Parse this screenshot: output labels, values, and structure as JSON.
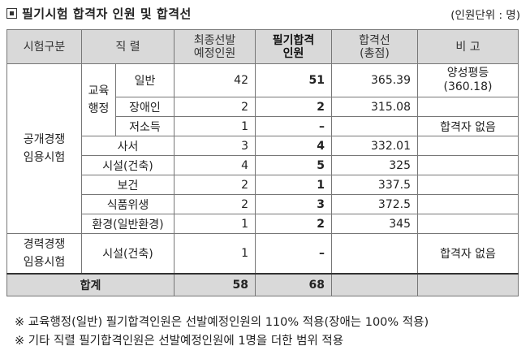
{
  "title": "필기시험 합격자 인원 및 합격선",
  "unit": "(인원단위 : 명)",
  "headers": {
    "category": "시험구분",
    "position": "직  렬",
    "planned": [
      "최종선발",
      "예정인원"
    ],
    "passed": [
      "필기합격",
      "인원"
    ],
    "cutoff": [
      "합격선",
      "(총점)"
    ],
    "note": "비  고"
  },
  "groups": {
    "public": [
      "공개경쟁",
      "임용시험"
    ],
    "career": [
      "경력경쟁",
      "임용시험"
    ],
    "edu": [
      "교육",
      "행정"
    ]
  },
  "rows": [
    {
      "name": "일반",
      "planned": "42",
      "passed": "51",
      "cutoff": "365.39",
      "note": [
        "양성평등",
        "(360.18)"
      ]
    },
    {
      "name": "장애인",
      "planned": "2",
      "passed": "2",
      "cutoff": "315.08",
      "note": []
    },
    {
      "name": "저소득",
      "planned": "1",
      "passed": "–",
      "cutoff": "",
      "note": [
        "합격자 없음"
      ]
    },
    {
      "name": "사서",
      "planned": "3",
      "passed": "4",
      "cutoff": "332.01",
      "note": []
    },
    {
      "name": "시설(건축)",
      "planned": "4",
      "passed": "5",
      "cutoff": "325",
      "note": []
    },
    {
      "name": "보건",
      "planned": "2",
      "passed": "1",
      "cutoff": "337.5",
      "note": []
    },
    {
      "name": "식품위생",
      "planned": "2",
      "passed": "3",
      "cutoff": "372.5",
      "note": []
    },
    {
      "name": "환경(일반환경)",
      "planned": "1",
      "passed": "2",
      "cutoff": "345",
      "note": []
    },
    {
      "name": "시설(건축)",
      "planned": "1",
      "passed": "–",
      "cutoff": "",
      "note": [
        "합격자 없음"
      ]
    }
  ],
  "total": {
    "label": "합계",
    "planned": "58",
    "passed": "68"
  },
  "notes": [
    "※ 교육행정(일반) 필기합격인원은 선발예정인원의 110% 적용(장애는 100% 적용)",
    "※ 기타 직렬 필기합격인원은 선발예정인원에 1명을 더한 범위 적용"
  ]
}
